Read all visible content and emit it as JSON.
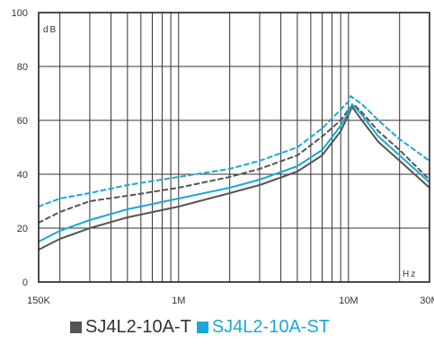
{
  "chart_data": {
    "type": "line",
    "title": "",
    "xlabel": "",
    "ylabel": "",
    "x_scale": "log",
    "xlim": [
      0.15,
      30
    ],
    "ylim": [
      0,
      100
    ],
    "y_ticks": [
      0,
      20,
      40,
      60,
      80,
      100
    ],
    "x_tick_labels": [
      {
        "value": 0.15,
        "label": "150K"
      },
      {
        "value": 1,
        "label": "1M"
      },
      {
        "value": 10,
        "label": "10M"
      },
      {
        "value": 30,
        "label": "30M"
      }
    ],
    "y_unit": "dB",
    "x_unit": "Hz",
    "grid": true,
    "legend_position": "bottom",
    "series": [
      {
        "name": "SJ4L2-10A-T",
        "color": "#555555",
        "dash": "solid",
        "x": [
          0.15,
          0.2,
          0.3,
          0.5,
          1,
          2,
          3,
          5,
          7,
          9,
          10,
          10.5,
          12,
          15,
          20,
          30
        ],
        "y": [
          12,
          16,
          20,
          24,
          28,
          33,
          36,
          41,
          47,
          56,
          62,
          65,
          60,
          52,
          45,
          35
        ]
      },
      {
        "name": "",
        "color": "#555555",
        "dash": "dashed",
        "x": [
          0.15,
          0.2,
          0.3,
          0.5,
          1,
          2,
          3,
          5,
          7,
          9,
          10,
          10.7,
          12,
          15,
          20,
          30
        ],
        "y": [
          22,
          26,
          30,
          32,
          35,
          39,
          42,
          47,
          54,
          60,
          64,
          66,
          63,
          56,
          49,
          38
        ]
      },
      {
        "name": "SJ4L2-10A-ST",
        "color": "#1aa8d8",
        "dash": "solid",
        "x": [
          0.15,
          0.2,
          0.3,
          0.5,
          1,
          2,
          3,
          5,
          7,
          9,
          10,
          10.5,
          12,
          15,
          20,
          30
        ],
        "y": [
          15,
          19,
          23,
          27,
          31,
          35,
          38,
          43,
          49,
          58,
          63,
          66,
          62,
          54,
          47,
          37
        ]
      },
      {
        "name": "",
        "color": "#1aa8d8",
        "dash": "dashed",
        "x": [
          0.15,
          0.2,
          0.3,
          0.5,
          1,
          2,
          3,
          5,
          7,
          9,
          10,
          10.3,
          12,
          15,
          20,
          30
        ],
        "y": [
          28,
          31,
          33,
          36,
          39,
          42,
          45,
          50,
          57,
          64,
          67,
          69,
          66,
          60,
          53,
          45
        ]
      }
    ]
  },
  "legend": {
    "items": [
      {
        "label": "SJ4L2-10A-T",
        "color": "#555555"
      },
      {
        "label": "SJ4L2-10A-ST",
        "color": "#1aa8d8"
      }
    ]
  }
}
